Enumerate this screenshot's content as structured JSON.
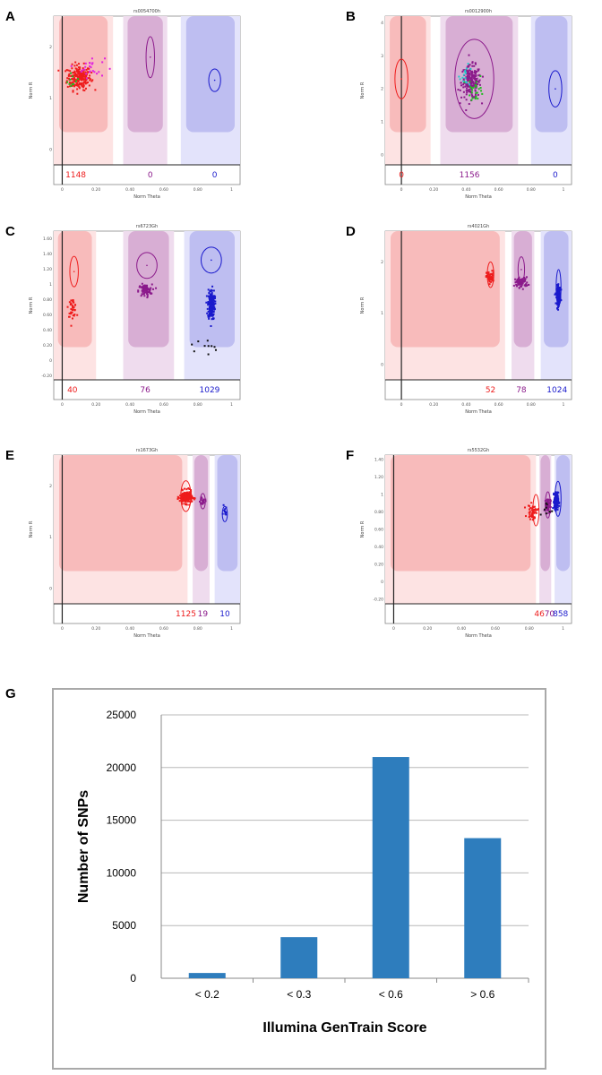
{
  "panel_letters": [
    "A",
    "B",
    "C",
    "D",
    "E",
    "F",
    "G"
  ],
  "colors": {
    "red": "#ee1c1c",
    "purple": "#8b1a8b",
    "blue": "#1a1acc",
    "bar": "#2e7dbd"
  },
  "chart_data": [
    {
      "type": "scatter",
      "panel": "A",
      "title": "rs0054700h",
      "xlabel": "Norm Theta",
      "ylabel": "Norm R",
      "xlim": [
        -0.05,
        1.05
      ],
      "ylim": [
        -0.3,
        2.6
      ],
      "xticks": [
        "0",
        "0.20",
        "0.40",
        "0.60",
        "0.80",
        "1"
      ],
      "yticks": [
        "0",
        "1",
        "2"
      ],
      "regions": [
        {
          "color": "red",
          "x_to": 0.3
        },
        {
          "color": "purple",
          "x_from": 0.36,
          "x_to": 0.62
        },
        {
          "color": "blue",
          "x_from": 0.7
        }
      ],
      "ellipses": [
        {
          "cluster": "purple",
          "x": 0.52,
          "y": 1.8,
          "rx": 0.025,
          "ry": 0.4
        },
        {
          "cluster": "blue",
          "x": 0.9,
          "y": 1.35,
          "rx": 0.035,
          "ry": 0.22
        }
      ],
      "clusters": [
        {
          "color": "red",
          "x": 0.1,
          "y": 1.4,
          "sx": 0.035,
          "sy": 0.12,
          "n": 220
        },
        {
          "color": "magenta",
          "x": 0.17,
          "y": 1.6,
          "sx": 0.04,
          "sy": 0.1,
          "n": 25
        },
        {
          "color": "green",
          "x": 0.06,
          "y": 1.35,
          "sx": 0.02,
          "sy": 0.08,
          "n": 10
        }
      ],
      "counts": [
        {
          "label": "1148",
          "color": "red",
          "x": 0.08
        },
        {
          "label": "0",
          "color": "purple",
          "x": 0.52
        },
        {
          "label": "0",
          "color": "blue",
          "x": 0.9
        }
      ]
    },
    {
      "type": "scatter",
      "panel": "B",
      "title": "rs0012900h",
      "xlabel": "Norm Theta",
      "ylabel": "Norm R",
      "xlim": [
        -0.1,
        1.05
      ],
      "ylim": [
        -0.3,
        4.2
      ],
      "xticks": [
        "0",
        "0.20",
        "0.40",
        "0.60",
        "0.80",
        "1"
      ],
      "yticks": [
        "0",
        "1",
        "2",
        "3",
        "4"
      ],
      "regions": [
        {
          "color": "red",
          "x_to": 0.18
        },
        {
          "color": "purple",
          "x_from": 0.24,
          "x_to": 0.72
        },
        {
          "color": "blue",
          "x_from": 0.8
        }
      ],
      "ellipses": [
        {
          "cluster": "red",
          "x": 0.0,
          "y": 2.3,
          "rx": 0.04,
          "ry": 0.6
        },
        {
          "cluster": "purple",
          "x": 0.45,
          "y": 2.3,
          "rx": 0.12,
          "ry": 1.2
        },
        {
          "cluster": "blue",
          "x": 0.95,
          "y": 2.0,
          "rx": 0.04,
          "ry": 0.55
        }
      ],
      "clusters": [
        {
          "color": "purple",
          "x": 0.43,
          "y": 2.2,
          "sx": 0.03,
          "sy": 0.25,
          "n": 200
        },
        {
          "color": "green",
          "x": 0.46,
          "y": 2.0,
          "sx": 0.025,
          "sy": 0.2,
          "n": 25
        },
        {
          "color": "cyan",
          "x": 0.4,
          "y": 2.4,
          "sx": 0.02,
          "sy": 0.15,
          "n": 15
        }
      ],
      "counts": [
        {
          "label": "0",
          "color": "red",
          "x": 0.0
        },
        {
          "label": "1156",
          "color": "purple",
          "x": 0.42
        },
        {
          "label": "0",
          "color": "blue",
          "x": 0.95
        }
      ]
    },
    {
      "type": "scatter",
      "panel": "C",
      "title": "rs6723Gh",
      "xlabel": "Norm Theta",
      "ylabel": "Norm R",
      "xlim": [
        -0.05,
        1.05
      ],
      "ylim": [
        -0.25,
        1.7
      ],
      "xticks": [
        "0",
        "0.20",
        "0.40",
        "0.60",
        "0.80",
        "1"
      ],
      "yticks": [
        "-0.20",
        "0",
        "0.20",
        "0.40",
        "0.60",
        "0.80",
        "1",
        "1.20",
        "1.40",
        "1.60"
      ],
      "regions": [
        {
          "color": "red",
          "x_to": 0.2
        },
        {
          "color": "purple",
          "x_from": 0.36,
          "x_to": 0.66
        },
        {
          "color": "blue",
          "x_from": 0.72
        }
      ],
      "ellipses": [
        {
          "cluster": "red",
          "x": 0.07,
          "y": 1.17,
          "rx": 0.025,
          "ry": 0.2
        },
        {
          "cluster": "purple",
          "x": 0.5,
          "y": 1.25,
          "rx": 0.06,
          "ry": 0.17
        },
        {
          "cluster": "blue",
          "x": 0.88,
          "y": 1.32,
          "rx": 0.06,
          "ry": 0.17
        }
      ],
      "clusters": [
        {
          "color": "red",
          "x": 0.06,
          "y": 0.7,
          "sx": 0.012,
          "sy": 0.06,
          "n": 40
        },
        {
          "color": "purple",
          "x": 0.49,
          "y": 0.92,
          "sx": 0.02,
          "sy": 0.04,
          "n": 76
        },
        {
          "color": "blue",
          "x": 0.88,
          "y": 0.74,
          "sx": 0.01,
          "sy": 0.1,
          "n": 200
        },
        {
          "color": "black",
          "x": 0.83,
          "y": 0.18,
          "sx": 0.04,
          "sy": 0.06,
          "n": 10
        }
      ],
      "counts": [
        {
          "label": "40",
          "color": "red",
          "x": 0.06
        },
        {
          "label": "76",
          "color": "purple",
          "x": 0.49
        },
        {
          "label": "1029",
          "color": "blue",
          "x": 0.87
        }
      ]
    },
    {
      "type": "scatter",
      "panel": "D",
      "title": "rs4021Gh",
      "xlabel": "Norm Theta",
      "ylabel": "Norm R",
      "xlim": [
        -0.1,
        1.05
      ],
      "ylim": [
        -0.3,
        2.6
      ],
      "xticks": [
        "0",
        "0.20",
        "0.40",
        "0.60",
        "0.80",
        "1"
      ],
      "yticks": [
        "0",
        "1",
        "2"
      ],
      "regions": [
        {
          "color": "red",
          "x_to": 0.64
        },
        {
          "color": "purple",
          "x_from": 0.68,
          "x_to": 0.82
        },
        {
          "color": "blue",
          "x_from": 0.86
        }
      ],
      "ellipses": [
        {
          "cluster": "red",
          "x": 0.55,
          "y": 1.75,
          "rx": 0.02,
          "ry": 0.25
        },
        {
          "cluster": "purple",
          "x": 0.74,
          "y": 1.85,
          "rx": 0.02,
          "ry": 0.25
        },
        {
          "cluster": "blue",
          "x": 0.97,
          "y": 1.5,
          "rx": 0.015,
          "ry": 0.35
        }
      ],
      "clusters": [
        {
          "color": "red",
          "x": 0.55,
          "y": 1.7,
          "sx": 0.012,
          "sy": 0.06,
          "n": 52
        },
        {
          "color": "purple",
          "x": 0.74,
          "y": 1.6,
          "sx": 0.02,
          "sy": 0.05,
          "n": 78
        },
        {
          "color": "blue",
          "x": 0.97,
          "y": 1.35,
          "sx": 0.006,
          "sy": 0.09,
          "n": 180
        }
      ],
      "counts": [
        {
          "label": "52",
          "color": "red",
          "x": 0.55
        },
        {
          "label": "78",
          "color": "purple",
          "x": 0.74
        },
        {
          "label": "1024",
          "color": "blue",
          "x": 0.96
        }
      ]
    },
    {
      "type": "scatter",
      "panel": "E",
      "title": "rs1673Gh",
      "xlabel": "Norm Theta",
      "ylabel": "Norm R",
      "xlim": [
        -0.05,
        1.05
      ],
      "ylim": [
        -0.3,
        2.6
      ],
      "xticks": [
        "0",
        "0.20",
        "0.40",
        "0.60",
        "0.80",
        "1"
      ],
      "yticks": [
        "0",
        "1",
        "2"
      ],
      "regions": [
        {
          "color": "red",
          "x_to": 0.74
        },
        {
          "color": "purple",
          "x_from": 0.77,
          "x_to": 0.87
        },
        {
          "color": "blue",
          "x_from": 0.9
        }
      ],
      "ellipses": [
        {
          "cluster": "red",
          "x": 0.73,
          "y": 1.8,
          "rx": 0.03,
          "ry": 0.3
        },
        {
          "cluster": "purple",
          "x": 0.83,
          "y": 1.7,
          "rx": 0.015,
          "ry": 0.15
        },
        {
          "cluster": "blue",
          "x": 0.96,
          "y": 1.45,
          "rx": 0.015,
          "ry": 0.15
        }
      ],
      "clusters": [
        {
          "color": "red",
          "x": 0.73,
          "y": 1.78,
          "sx": 0.018,
          "sy": 0.06,
          "n": 220
        },
        {
          "color": "purple",
          "x": 0.83,
          "y": 1.7,
          "sx": 0.008,
          "sy": 0.04,
          "n": 19
        },
        {
          "color": "blue",
          "x": 0.96,
          "y": 1.5,
          "sx": 0.005,
          "sy": 0.05,
          "n": 10
        }
      ],
      "counts": [
        {
          "label": "1125",
          "color": "red",
          "x": 0.73
        },
        {
          "label": "19",
          "color": "purple",
          "x": 0.83
        },
        {
          "label": "10",
          "color": "blue",
          "x": 0.96
        }
      ]
    },
    {
      "type": "scatter",
      "panel": "F",
      "title": "rs5532Gh",
      "xlabel": "Norm Theta",
      "ylabel": "Norm R",
      "xlim": [
        -0.05,
        1.05
      ],
      "ylim": [
        -0.25,
        1.45
      ],
      "xticks": [
        "0",
        "0.20",
        "0.40",
        "0.60",
        "0.80",
        "1"
      ],
      "yticks": [
        "-0.20",
        "0",
        "0.20",
        "0.40",
        "0.60",
        "0.80",
        "1",
        "1.20",
        "1.40"
      ],
      "regions": [
        {
          "color": "red",
          "x_to": 0.84
        },
        {
          "color": "purple",
          "x_from": 0.86,
          "x_to": 0.93
        },
        {
          "color": "blue",
          "x_from": 0.95
        }
      ],
      "ellipses": [
        {
          "cluster": "red",
          "x": 0.84,
          "y": 0.82,
          "rx": 0.018,
          "ry": 0.18
        },
        {
          "cluster": "purple",
          "x": 0.91,
          "y": 0.88,
          "rx": 0.015,
          "ry": 0.15
        },
        {
          "cluster": "blue",
          "x": 0.97,
          "y": 0.95,
          "rx": 0.018,
          "ry": 0.2
        }
      ],
      "clusters": [
        {
          "color": "red",
          "x": 0.82,
          "y": 0.8,
          "sx": 0.015,
          "sy": 0.04,
          "n": 46
        },
        {
          "color": "purple",
          "x": 0.91,
          "y": 0.88,
          "sx": 0.008,
          "sy": 0.04,
          "n": 70
        },
        {
          "color": "blue",
          "x": 0.96,
          "y": 0.92,
          "sx": 0.006,
          "sy": 0.05,
          "n": 150
        },
        {
          "color": "black",
          "x": 0.9,
          "y": 0.82,
          "sx": 0.02,
          "sy": 0.05,
          "n": 8
        }
      ],
      "counts": [
        {
          "label": "46",
          "color": "red",
          "x": 0.86
        },
        {
          "label": "70",
          "color": "purple",
          "x": 0.92
        },
        {
          "label": "858",
          "color": "blue",
          "x": 0.985
        }
      ]
    },
    {
      "type": "bar",
      "panel": "G",
      "categories": [
        "< 0.2",
        "< 0.3",
        "< 0.6",
        "> 0.6"
      ],
      "values": [
        500,
        3900,
        21000,
        13300
      ],
      "xlabel": "Illumina GenTrain Score",
      "ylabel": "Number of SNPs",
      "ylim": [
        0,
        25000
      ],
      "yticks": [
        "0",
        "5000",
        "10000",
        "15000",
        "20000",
        "25000"
      ],
      "grid": true
    }
  ]
}
